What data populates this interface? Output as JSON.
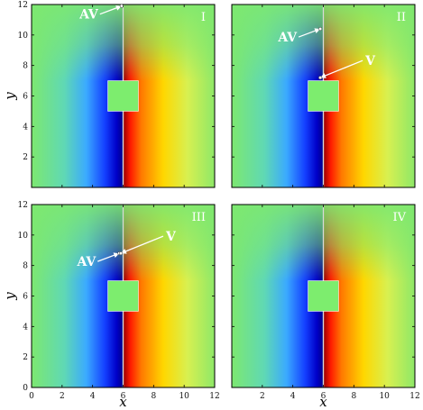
{
  "chart_data": {
    "type": "heatmap",
    "grid": false,
    "xlim": [
      0,
      12
    ],
    "ylim": [
      0,
      12
    ],
    "xticks": [
      0,
      2,
      4,
      6,
      8,
      10,
      12
    ],
    "yticks": [
      0,
      2,
      4,
      6,
      8,
      10,
      12
    ],
    "xlabel": "x",
    "ylabel": "y",
    "colormap": "jet",
    "obstacle": {
      "x0": 5,
      "x1": 7,
      "y0": 5,
      "y1": 7,
      "color": "#7ded6e"
    },
    "panels": [
      {
        "label": "I",
        "annotations": [
          {
            "text": "AV",
            "point": [
              5.9,
              11.9
            ]
          }
        ]
      },
      {
        "label": "II",
        "annotations": [
          {
            "text": "AV",
            "point": [
              5.8,
              10.4
            ]
          },
          {
            "text": "V",
            "point": [
              5.8,
              7.2
            ]
          }
        ]
      },
      {
        "label": "III",
        "annotations": [
          {
            "text": "AV",
            "point": [
              5.75,
              8.8
            ]
          },
          {
            "text": "V",
            "point": [
              5.85,
              8.8
            ]
          }
        ]
      },
      {
        "label": "IV",
        "annotations": []
      }
    ]
  }
}
